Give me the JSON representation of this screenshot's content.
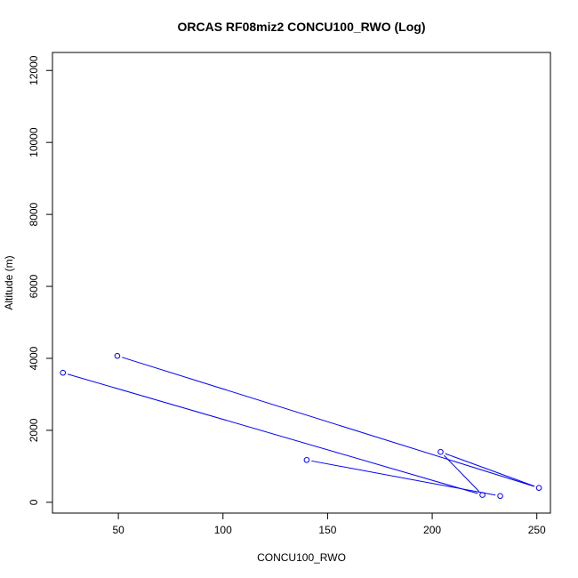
{
  "chart_data": {
    "type": "line",
    "title": "ORCAS RF08miz2 CONCU100_RWO (Log)",
    "xlabel": "CONCU100_RWO",
    "ylabel": "Altitude (m)",
    "xlim": [
      18.5,
      256.5
    ],
    "ylim": [
      -300,
      12500
    ],
    "xticks": [
      50,
      100,
      150,
      200,
      250
    ],
    "yticks": [
      0,
      2000,
      4000,
      6000,
      8000,
      10000,
      12000
    ],
    "grid": false,
    "series_color": "#0000ff",
    "points": [
      {
        "x": 23.5,
        "y": 3600
      },
      {
        "x": 224,
        "y": 205
      },
      {
        "x": 140,
        "y": 1175
      },
      {
        "x": 232.5,
        "y": 175
      },
      {
        "x": 204,
        "y": 1400
      },
      {
        "x": 251,
        "y": 400
      },
      {
        "x": 49.5,
        "y": 4070
      }
    ],
    "connections": [
      [
        0,
        1
      ],
      [
        1,
        4
      ],
      [
        2,
        3
      ],
      [
        4,
        5
      ],
      [
        5,
        6
      ]
    ]
  }
}
